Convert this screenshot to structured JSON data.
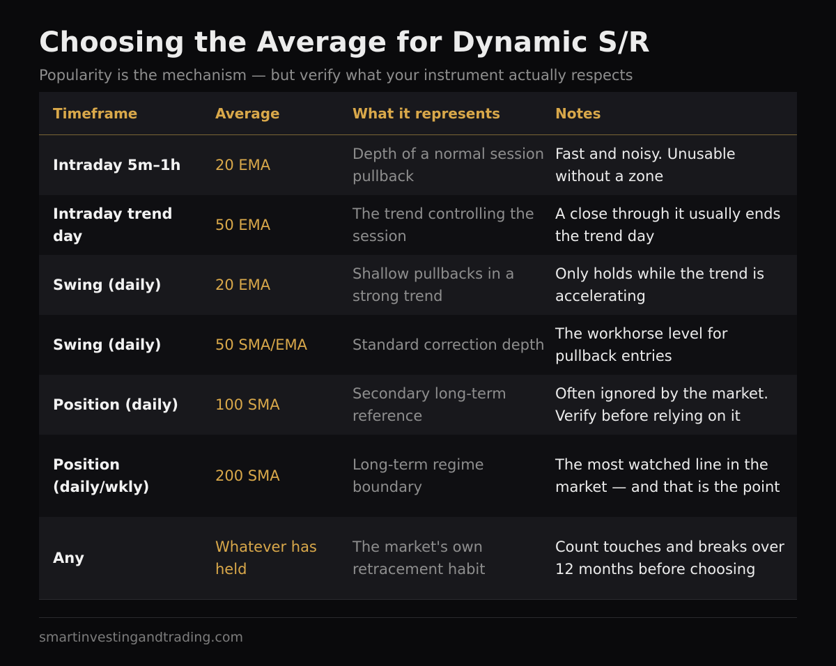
{
  "title": "Choosing the Average for Dynamic S/R",
  "subtitle": "Popularity is the mechanism — but verify what your instrument actually respects",
  "table": {
    "headers": [
      "Timeframe",
      "Average",
      "What it represents",
      "Notes"
    ],
    "rows": [
      [
        "Intraday 5m–1h",
        "20 EMA",
        "Depth of a normal session pullback",
        "Fast and noisy. Unusable without a zone"
      ],
      [
        "Intraday trend day",
        "50 EMA",
        "The trend controlling the session",
        "A close through it usually ends the trend day"
      ],
      [
        "Swing (daily)",
        "20 EMA",
        "Shallow pullbacks in a strong trend",
        "Only holds while the trend is accelerating"
      ],
      [
        "Swing (daily)",
        "50 SMA/EMA",
        "Standard correction depth",
        "The workhorse level for pullback entries"
      ],
      [
        "Position (daily)",
        "100 SMA",
        "Secondary long-term reference",
        "Often ignored by the market. Verify before relying on it"
      ],
      [
        "Position (daily/wkly)",
        "200 SMA",
        "Long-term regime boundary",
        "The most watched line in the market — and that is the point"
      ],
      [
        "Any",
        "Whatever has held",
        "The market's own retracement habit",
        "Count touches and breaks over 12 months before choosing"
      ]
    ]
  },
  "footer": "smartinvestingandtrading.com",
  "colors": {
    "background": "#0a0a0c",
    "accent": "#d9a84a",
    "muted_text": "#8e8e8e",
    "text": "#ececec"
  }
}
